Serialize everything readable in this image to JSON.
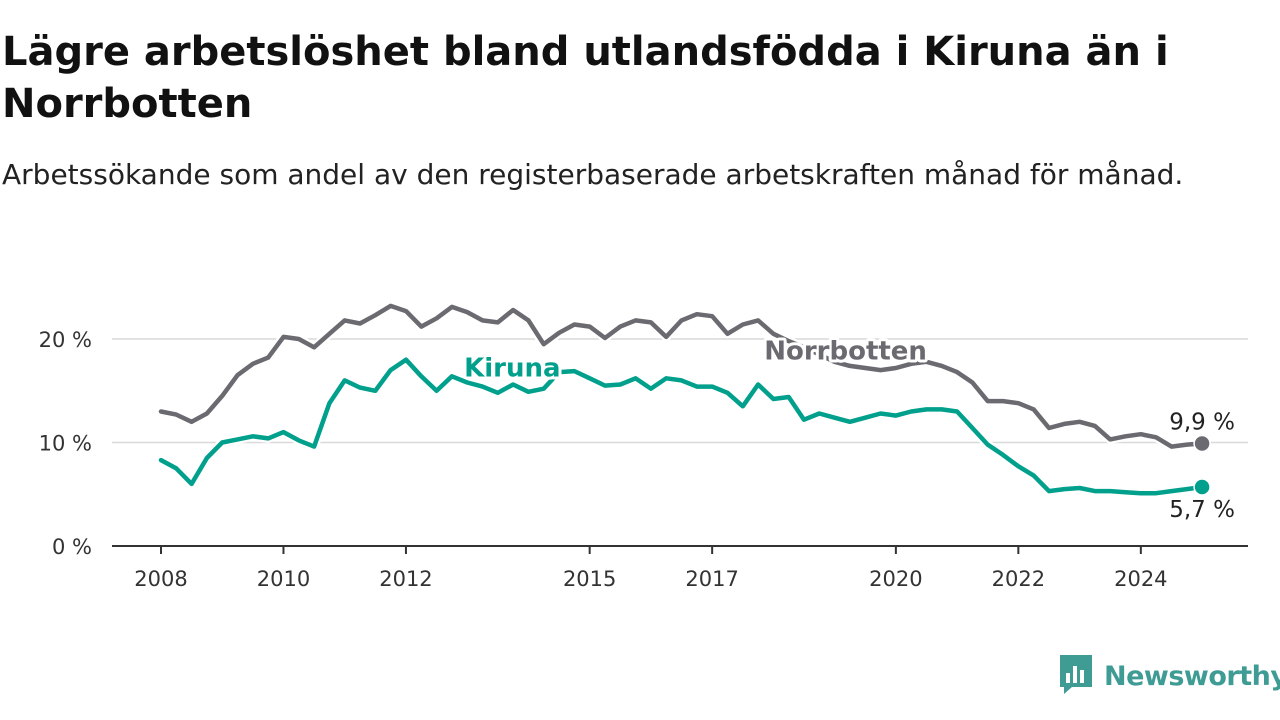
{
  "title": "Lägre arbetslöshet bland utlandsfödda i Kiruna än i Norrbotten",
  "subtitle": "Arbetssökande som andel av den registerbaserade arbetskraften månad för månad.",
  "brand": {
    "name": "Newsworthy",
    "icon": "newsworthy-logo-icon"
  },
  "colors": {
    "kiruna": "#00a08c",
    "norrbotten": "#6b6a70",
    "grid": "#d9d9d9",
    "axis": "#333333"
  },
  "chart_data": {
    "type": "line",
    "title": "Lägre arbetslöshet bland utlandsfödda i Kiruna än i Norrbotten",
    "subtitle": "Arbetssökande som andel av den registerbaserade arbetskraften månad för månad.",
    "xlabel": "",
    "ylabel": "",
    "ylim": [
      0,
      25
    ],
    "y_ticks": [
      0,
      10,
      20
    ],
    "y_tick_labels": [
      "0 %",
      "10 %",
      "20 %"
    ],
    "x_ticks": [
      2008,
      2010,
      2012,
      2015,
      2017,
      2020,
      2022,
      2024
    ],
    "x_tick_labels": [
      "2008",
      "2010",
      "2012",
      "2015",
      "2017",
      "2020",
      "2022",
      "2024"
    ],
    "xlim": [
      2007.2,
      2025.75
    ],
    "grid": true,
    "legend": "direct labels",
    "series": [
      {
        "name": "Norrbotten",
        "color": "#6b6a70",
        "end_label": "9,9 %",
        "x": [
          2008.0,
          2008.25,
          2008.5,
          2008.75,
          2009.0,
          2009.25,
          2009.5,
          2009.75,
          2010.0,
          2010.25,
          2010.5,
          2010.75,
          2011.0,
          2011.25,
          2011.5,
          2011.75,
          2012.0,
          2012.25,
          2012.5,
          2012.75,
          2013.0,
          2013.25,
          2013.5,
          2013.75,
          2014.0,
          2014.25,
          2014.5,
          2014.75,
          2015.0,
          2015.25,
          2015.5,
          2015.75,
          2016.0,
          2016.25,
          2016.5,
          2016.75,
          2017.0,
          2017.25,
          2017.5,
          2017.75,
          2018.0,
          2018.25,
          2018.5,
          2018.75,
          2019.0,
          2019.25,
          2019.5,
          2019.75,
          2020.0,
          2020.25,
          2020.5,
          2020.75,
          2021.0,
          2021.25,
          2021.5,
          2021.75,
          2022.0,
          2022.25,
          2022.5,
          2022.75,
          2023.0,
          2023.25,
          2023.5,
          2023.75,
          2024.0,
          2024.25,
          2024.5,
          2024.75,
          2025.0
        ],
        "values": [
          13.0,
          12.7,
          12.0,
          12.8,
          14.5,
          16.5,
          17.6,
          18.2,
          20.2,
          20.0,
          19.2,
          20.5,
          21.8,
          21.5,
          22.3,
          23.2,
          22.7,
          21.2,
          22.0,
          23.1,
          22.6,
          21.8,
          21.6,
          22.8,
          21.8,
          19.5,
          20.6,
          21.4,
          21.2,
          20.1,
          21.2,
          21.8,
          21.6,
          20.2,
          21.8,
          22.4,
          22.2,
          20.5,
          21.4,
          21.8,
          20.5,
          19.8,
          19.2,
          18.5,
          17.8,
          17.4,
          17.2,
          17.0,
          17.2,
          17.6,
          17.8,
          17.4,
          16.8,
          15.8,
          14.0,
          14.0,
          13.8,
          13.2,
          11.4,
          11.8,
          12.0,
          11.6,
          10.3,
          10.6,
          10.8,
          10.5,
          9.6,
          9.8,
          9.9
        ]
      },
      {
        "name": "Kiruna",
        "color": "#00a08c",
        "end_label": "5,7 %",
        "x": [
          2008.0,
          2008.25,
          2008.5,
          2008.75,
          2009.0,
          2009.25,
          2009.5,
          2009.75,
          2010.0,
          2010.25,
          2010.5,
          2010.75,
          2011.0,
          2011.25,
          2011.5,
          2011.75,
          2012.0,
          2012.25,
          2012.5,
          2012.75,
          2013.0,
          2013.25,
          2013.5,
          2013.75,
          2014.0,
          2014.25,
          2014.5,
          2014.75,
          2015.0,
          2015.25,
          2015.5,
          2015.75,
          2016.0,
          2016.25,
          2016.5,
          2016.75,
          2017.0,
          2017.25,
          2017.5,
          2017.75,
          2018.0,
          2018.25,
          2018.5,
          2018.75,
          2019.0,
          2019.25,
          2019.5,
          2019.75,
          2020.0,
          2020.25,
          2020.5,
          2020.75,
          2021.0,
          2021.25,
          2021.5,
          2021.75,
          2022.0,
          2022.25,
          2022.5,
          2022.75,
          2023.0,
          2023.25,
          2023.5,
          2023.75,
          2024.0,
          2024.25,
          2024.5,
          2024.75,
          2025.0
        ],
        "values": [
          8.3,
          7.5,
          6.0,
          8.5,
          10.0,
          10.3,
          10.6,
          10.4,
          11.0,
          10.2,
          9.6,
          13.8,
          16.0,
          15.3,
          15.0,
          17.0,
          18.0,
          16.4,
          15.0,
          16.4,
          15.8,
          15.4,
          14.8,
          15.6,
          14.9,
          15.2,
          16.8,
          16.9,
          16.2,
          15.5,
          15.6,
          16.2,
          15.2,
          16.2,
          16.0,
          15.4,
          15.4,
          14.8,
          13.5,
          15.6,
          14.2,
          14.4,
          12.2,
          12.8,
          12.4,
          12.0,
          12.4,
          12.8,
          12.6,
          13.0,
          13.2,
          13.2,
          13.0,
          11.4,
          9.8,
          8.8,
          7.7,
          6.8,
          5.3,
          5.5,
          5.6,
          5.3,
          5.3,
          5.2,
          5.1,
          5.1,
          5.3,
          5.5,
          5.7
        ]
      }
    ]
  }
}
